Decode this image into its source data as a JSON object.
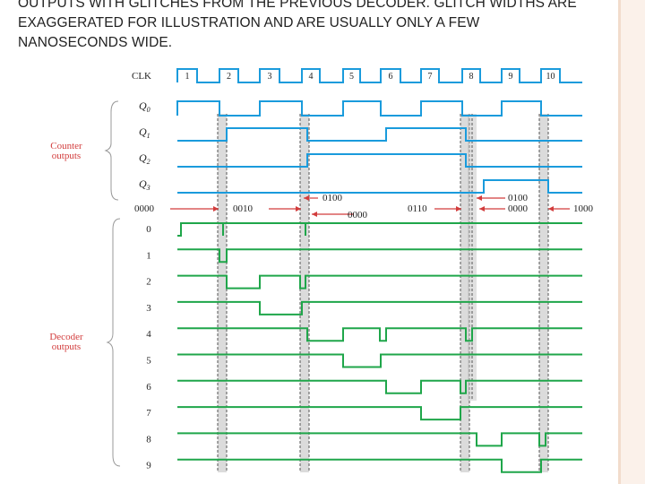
{
  "slide": {
    "heading_lines": [
      "OUTPUTS WITH GLITCHES FROM THE PREVIOUS DECODER. GLITCH WIDTHS ARE",
      "EXAGGERATED FOR ILLUSTRATION AND ARE USUALLY ONLY A FEW",
      "NANOSECONDS WIDE."
    ]
  },
  "diagram": {
    "clock_label": "CLK",
    "clock_pulse_numbers": [
      "1",
      "2",
      "3",
      "4",
      "5",
      "6",
      "7",
      "8",
      "9",
      "10"
    ],
    "counter_signals": [
      {
        "label": "Q",
        "sub": "0"
      },
      {
        "label": "Q",
        "sub": "1"
      },
      {
        "label": "Q",
        "sub": "2"
      },
      {
        "label": "Q",
        "sub": "3"
      }
    ],
    "counter_group_label": [
      "Counter",
      "outputs"
    ],
    "decoder_group_label": [
      "Decoder",
      "outputs"
    ],
    "decoder_output_labels": [
      "0",
      "1",
      "2",
      "3",
      "4",
      "5",
      "6",
      "7",
      "8",
      "9"
    ],
    "state_annotations": {
      "s0000": "0000",
      "s0010": "0010",
      "s0100": "0100",
      "s0000_b": "0000",
      "s0110": "0110",
      "s0100_b": "0100",
      "s0000_c": "0000",
      "s1000": "1000"
    },
    "colors": {
      "counter_waveform": "#1a9bdc",
      "decoder_waveform": "#1fa64a",
      "label": "#222222",
      "group_label": "#d23c3c",
      "arrow": "#d23c3c",
      "glitch_fill": "#bdbdbd"
    }
  }
}
